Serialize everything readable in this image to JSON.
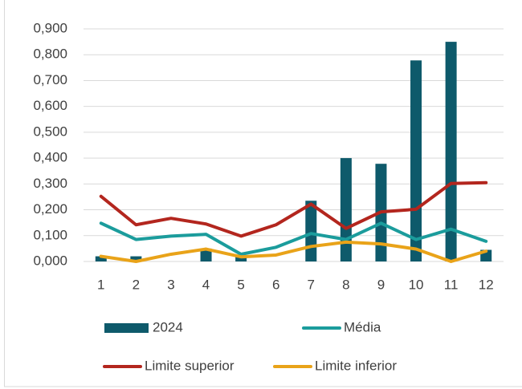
{
  "chart_data": {
    "type": "bar",
    "categories": [
      "1",
      "2",
      "3",
      "4",
      "5",
      "6",
      "7",
      "8",
      "9",
      "10",
      "11",
      "12"
    ],
    "series": [
      {
        "name": "2024",
        "type": "bar",
        "color": "#0e5a6b",
        "values": [
          0.02,
          0.02,
          0,
          0.05,
          0.025,
          0,
          0.235,
          0.4,
          0.378,
          0.778,
          0.85,
          0.045
        ]
      },
      {
        "name": "Média",
        "type": "line",
        "color": "#1b9c9c",
        "values": [
          0.148,
          0.085,
          0.098,
          0.105,
          0.028,
          0.055,
          0.108,
          0.085,
          0.148,
          0.085,
          0.125,
          0.078
        ]
      },
      {
        "name": "Limite superior",
        "type": "line",
        "color": "#b3261e",
        "values": [
          0.252,
          0.142,
          0.167,
          0.145,
          0.098,
          0.142,
          0.222,
          0.128,
          0.192,
          0.202,
          0.302,
          0.305
        ]
      },
      {
        "name": "Limite inferior",
        "type": "line",
        "color": "#e9a319",
        "values": [
          0.02,
          0,
          0.028,
          0.048,
          0.018,
          0.025,
          0.058,
          0.075,
          0.068,
          0.048,
          0,
          0.04
        ]
      }
    ],
    "ylim": [
      0,
      0.9
    ],
    "yticks": [
      {
        "value": 0,
        "label": "0,000"
      },
      {
        "value": 0.1,
        "label": "0,100"
      },
      {
        "value": 0.2,
        "label": "0,200"
      },
      {
        "value": 0.3,
        "label": "0,300"
      },
      {
        "value": 0.4,
        "label": "0,400"
      },
      {
        "value": 0.5,
        "label": "0,500"
      },
      {
        "value": 0.6,
        "label": "0,600"
      },
      {
        "value": 0.7,
        "label": "0,700"
      },
      {
        "value": 0.8,
        "label": "0,800"
      },
      {
        "value": 0.9,
        "label": "0,900"
      }
    ],
    "grid": true,
    "legend": "bottom"
  }
}
